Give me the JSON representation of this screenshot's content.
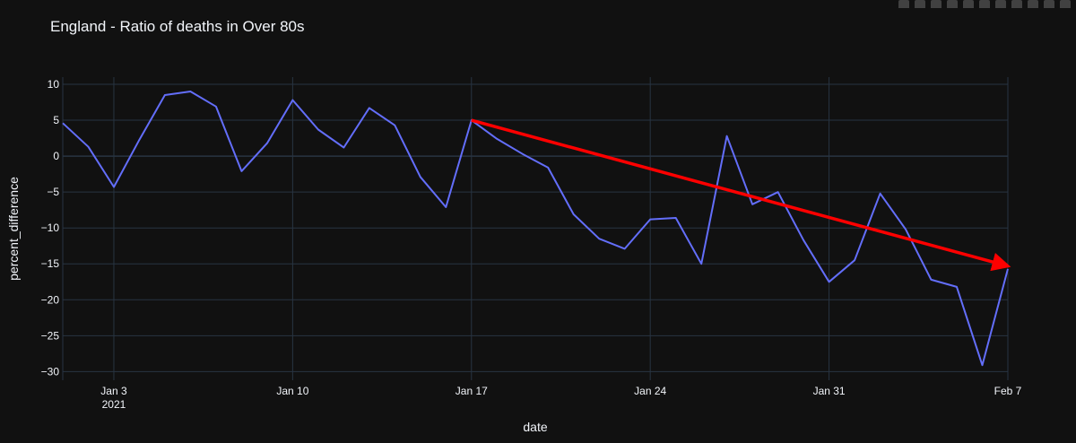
{
  "modebar": {
    "buttons": [
      "camera-icon",
      "zoom-icon",
      "pan-icon",
      "zoom-in-icon",
      "zoom-out-icon",
      "autoscale-icon",
      "home-icon",
      "spike-lines-icon",
      "hover-closest-icon",
      "hover-compare-icon",
      "plotly-logo-icon"
    ]
  },
  "colors": {
    "background": "#111111",
    "grid": "#283442",
    "line": "#636efa",
    "arrow": "#ff0000",
    "text": "#f2f5fa"
  },
  "chart_data": {
    "type": "line",
    "title": "England - Ratio of deaths in Over 80s",
    "xlabel": "date",
    "ylabel": "percent_difference",
    "x_ticks": [
      {
        "date": "2021-01-03",
        "label": "Jan 3",
        "sublabel": "2021"
      },
      {
        "date": "2021-01-10",
        "label": "Jan 10",
        "sublabel": ""
      },
      {
        "date": "2021-01-17",
        "label": "Jan 17",
        "sublabel": ""
      },
      {
        "date": "2021-01-24",
        "label": "Jan 24",
        "sublabel": ""
      },
      {
        "date": "2021-01-31",
        "label": "Jan 31",
        "sublabel": ""
      },
      {
        "date": "2021-02-07",
        "label": "Feb 7",
        "sublabel": ""
      }
    ],
    "y_ticks": [
      10,
      5,
      0,
      -5,
      -10,
      -15,
      -20,
      -25,
      -30
    ],
    "y_tick_labels": [
      "10",
      "5",
      "0",
      "−5",
      "−10",
      "−15",
      "−20",
      "−25",
      "−30"
    ],
    "xlim": [
      "2021-01-01",
      "2021-02-07"
    ],
    "ylim": [
      -31.2,
      11.0
    ],
    "grid": true,
    "series": [
      {
        "x": [
          "2021-01-01",
          "2021-01-02",
          "2021-01-03",
          "2021-01-04",
          "2021-01-05",
          "2021-01-06",
          "2021-01-07",
          "2021-01-08",
          "2021-01-09",
          "2021-01-10",
          "2021-01-11",
          "2021-01-12",
          "2021-01-13",
          "2021-01-14",
          "2021-01-15",
          "2021-01-16",
          "2021-01-17",
          "2021-01-18",
          "2021-01-19",
          "2021-01-20",
          "2021-01-21",
          "2021-01-22",
          "2021-01-23",
          "2021-01-24",
          "2021-01-25",
          "2021-01-26",
          "2021-01-27",
          "2021-01-28",
          "2021-01-29",
          "2021-01-30",
          "2021-01-31",
          "2021-02-01",
          "2021-02-02",
          "2021-02-03",
          "2021-02-04",
          "2021-02-05",
          "2021-02-06",
          "2021-02-07"
        ],
        "y": [
          4.6,
          1.3,
          -4.3,
          2.3,
          8.5,
          9.0,
          6.9,
          -2.1,
          1.8,
          7.8,
          3.7,
          1.2,
          6.7,
          4.3,
          -2.9,
          -7.1,
          5.0,
          2.4,
          0.3,
          -1.6,
          -8.1,
          -11.5,
          -12.9,
          -8.8,
          -8.6,
          -15.0,
          2.8,
          -6.7,
          -5.0,
          -11.7,
          -17.5,
          -14.5,
          -5.2,
          -10.2,
          -17.2,
          -18.2,
          -29.1,
          -15.7
        ]
      }
    ],
    "annotations": [
      {
        "type": "arrow",
        "from": {
          "x": "2021-01-17",
          "y": 5.0
        },
        "to": {
          "x": "2021-02-07",
          "y": -15.3
        }
      }
    ]
  }
}
